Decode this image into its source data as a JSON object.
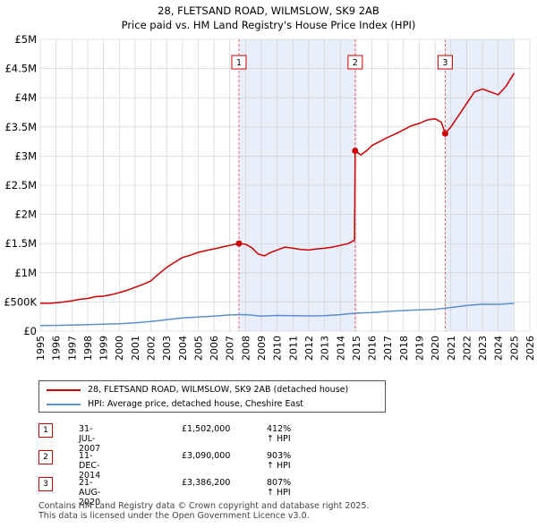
{
  "chart_data": {
    "type": "line",
    "title": "28, FLETSAND ROAD, WILMSLOW, SK9 2AB",
    "subtitle": "Price paid vs. HM Land Registry's House Price Index (HPI)",
    "xlabel": "",
    "ylabel": "",
    "xlim": [
      1995,
      2026
    ],
    "ylim": [
      0,
      5000000
    ],
    "x_ticks": [
      "1995",
      "1996",
      "1997",
      "1998",
      "1999",
      "2000",
      "2001",
      "2002",
      "2003",
      "2004",
      "2005",
      "2006",
      "2007",
      "2008",
      "2009",
      "2010",
      "2011",
      "2012",
      "2013",
      "2014",
      "2015",
      "2016",
      "2017",
      "2018",
      "2019",
      "2020",
      "2021",
      "2022",
      "2023",
      "2024",
      "2025",
      "2026"
    ],
    "y_ticks": [
      {
        "value": 0,
        "label": "£0"
      },
      {
        "value": 500000,
        "label": "£500K"
      },
      {
        "value": 1000000,
        "label": "£1M"
      },
      {
        "value": 1500000,
        "label": "£1.5M"
      },
      {
        "value": 2000000,
        "label": "£2M"
      },
      {
        "value": 2500000,
        "label": "£2.5M"
      },
      {
        "value": 3000000,
        "label": "£3M"
      },
      {
        "value": 3500000,
        "label": "£3.5M"
      },
      {
        "value": 4000000,
        "label": "£4M"
      },
      {
        "value": 4500000,
        "label": "£4.5M"
      },
      {
        "value": 5000000,
        "label": "£5M"
      }
    ],
    "grid": true,
    "shaded_ranges": [
      [
        2007.58,
        2014.94
      ],
      [
        2020.64,
        2025.0
      ]
    ],
    "series": [
      {
        "name": "28, FLETSAND ROAD, WILMSLOW, SK9 2AB (detached house)",
        "color": "#cc0000",
        "x": [
          1995,
          1995.5,
          1996,
          1996.5,
          1997,
          1997.5,
          1998,
          1998.5,
          1999,
          1999.5,
          2000,
          2000.5,
          2001,
          2001.5,
          2002,
          2002.5,
          2003,
          2003.5,
          2004,
          2004.5,
          2005,
          2005.5,
          2006,
          2006.5,
          2007,
          2007.58,
          2008,
          2008.4,
          2008.8,
          2009.2,
          2009.6,
          2010,
          2010.5,
          2011,
          2011.5,
          2012,
          2012.5,
          2013,
          2013.5,
          2014,
          2014.5,
          2014.9,
          2014.94,
          2015.3,
          2015.7,
          2016,
          2016.5,
          2017,
          2017.5,
          2018,
          2018.5,
          2019,
          2019.5,
          2020,
          2020.4,
          2020.64,
          2021,
          2021.5,
          2022,
          2022.5,
          2023,
          2023.5,
          2024,
          2024.5,
          2025
        ],
        "values": [
          480000,
          475000,
          485000,
          500000,
          520000,
          545000,
          560000,
          590000,
          600000,
          625000,
          660000,
          700000,
          750000,
          800000,
          860000,
          980000,
          1090000,
          1180000,
          1260000,
          1300000,
          1350000,
          1380000,
          1410000,
          1440000,
          1470000,
          1502000,
          1490000,
          1430000,
          1320000,
          1290000,
          1350000,
          1390000,
          1440000,
          1420000,
          1400000,
          1390000,
          1410000,
          1420000,
          1440000,
          1470000,
          1500000,
          1560000,
          3090000,
          3020000,
          3100000,
          3180000,
          3250000,
          3320000,
          3380000,
          3450000,
          3520000,
          3560000,
          3620000,
          3640000,
          3580000,
          3386200,
          3500000,
          3700000,
          3900000,
          4100000,
          4150000,
          4100000,
          4050000,
          4200000,
          4420000
        ]
      },
      {
        "name": "HPI: Average price, detached house, Cheshire East",
        "color": "#5b8fcf",
        "x": [
          1995,
          1996,
          1997,
          1998,
          1999,
          2000,
          2001,
          2002,
          2003,
          2004,
          2005,
          2006,
          2007,
          2008,
          2009,
          2010,
          2011,
          2012,
          2013,
          2014,
          2015,
          2016,
          2017,
          2018,
          2019,
          2020,
          2021,
          2022,
          2023,
          2024,
          2025
        ],
        "values": [
          95000,
          98000,
          103000,
          110000,
          118000,
          128000,
          143000,
          165000,
          195000,
          225000,
          243000,
          258000,
          278000,
          283000,
          258000,
          268000,
          264000,
          260000,
          264000,
          282000,
          308000,
          318000,
          338000,
          352000,
          365000,
          375000,
          405000,
          438000,
          462000,
          458000,
          475000
        ]
      }
    ],
    "transactions": [
      {
        "id": "1",
        "x": 2007.58,
        "value": 1502000,
        "date": "31-JUL-2007",
        "price": "£1,502,000",
        "hpi": "412% ↑ HPI"
      },
      {
        "id": "2",
        "x": 2014.94,
        "value": 3090000,
        "date": "11-DEC-2014",
        "price": "£3,090,000",
        "hpi": "903% ↑ HPI"
      },
      {
        "id": "3",
        "x": 2020.64,
        "value": 3386200,
        "date": "21-AUG-2020",
        "price": "£3,386,200",
        "hpi": "807% ↑ HPI"
      }
    ]
  },
  "legend": {
    "property": "28, FLETSAND ROAD, WILMSLOW, SK9 2AB (detached house)",
    "hpi": "HPI: Average price, detached house, Cheshire East"
  },
  "footer": {
    "line1": "Contains HM Land Registry data © Crown copyright and database right 2025.",
    "line2": "This data is licensed under the Open Government Licence v3.0."
  },
  "colors": {
    "property_line": "#cc0000",
    "hpi_line": "#5b8fcf",
    "shade": "#e8eefa",
    "grid": "#cccccc"
  }
}
